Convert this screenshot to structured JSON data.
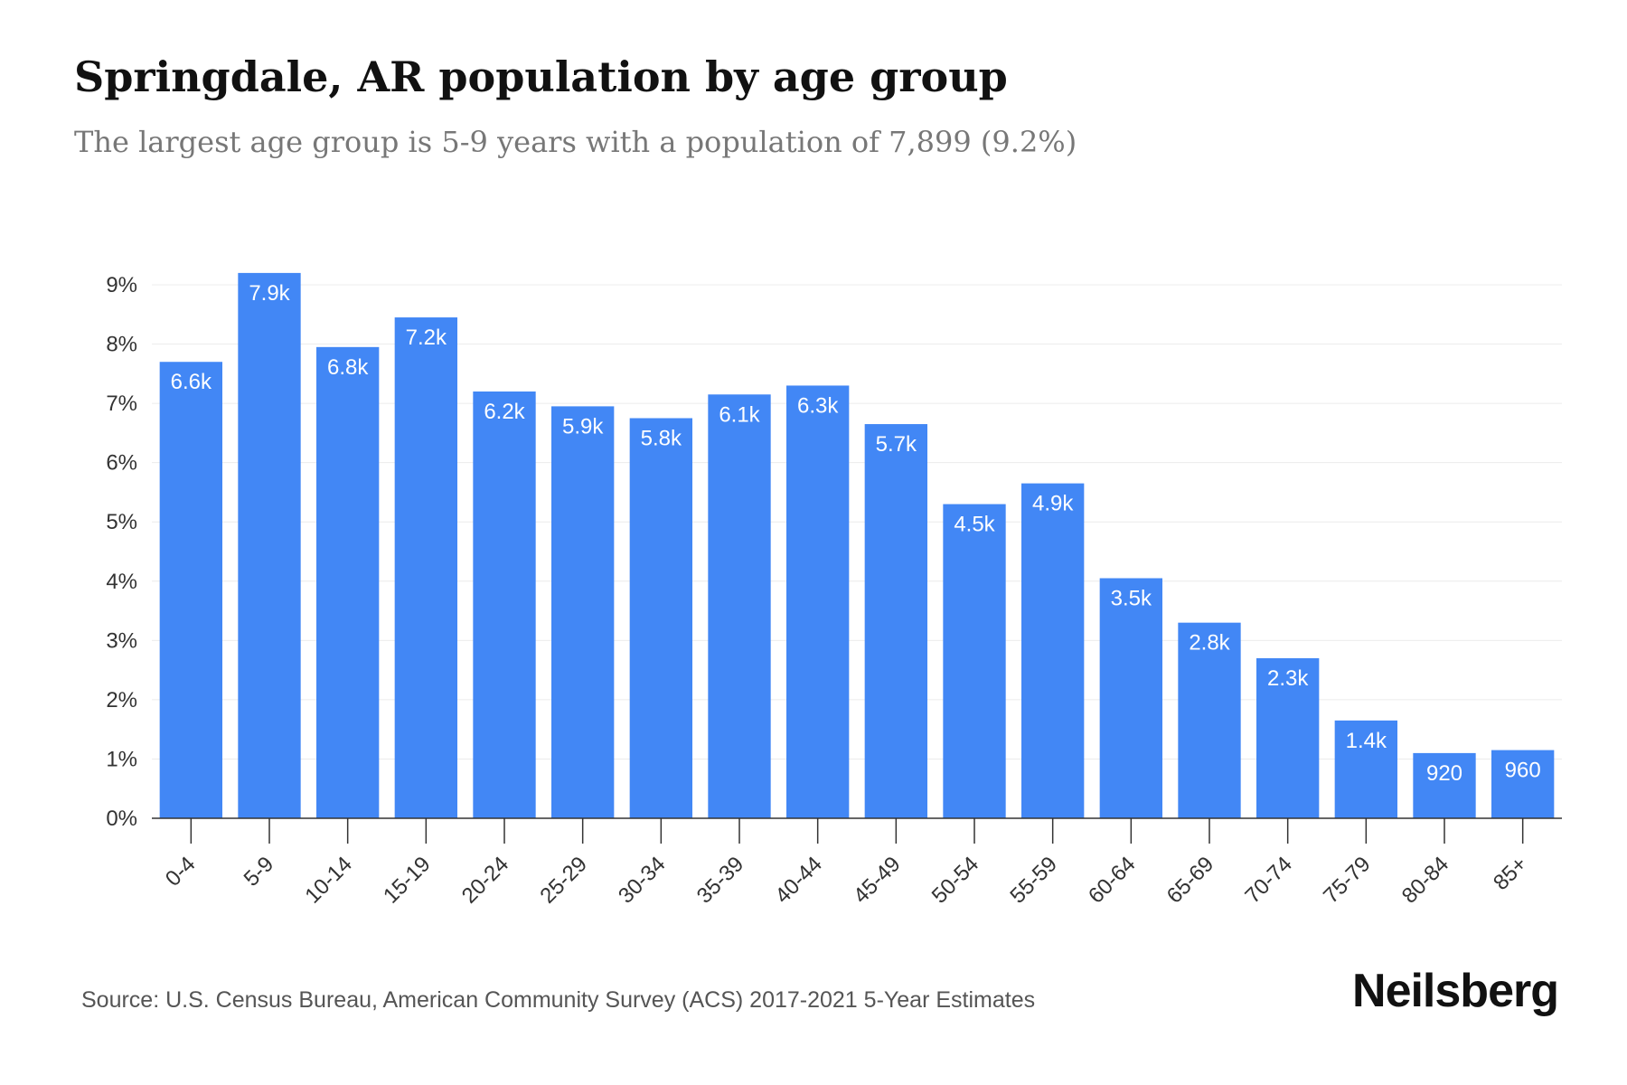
{
  "header": {
    "title": "Springdale, AR population by age group",
    "subtitle": "The largest age group is 5-9 years with a population of 7,899 (9.2%)"
  },
  "footer": {
    "source": "Source: U.S. Census Bureau, American Community Survey (ACS) 2017-2021 5-Year Estimates",
    "brand": "Neilsberg"
  },
  "colors": {
    "bar": "#4287f5",
    "grid": "#ececec",
    "axis": "#333333"
  },
  "chart_data": {
    "type": "bar",
    "title": "Springdale, AR population by age group",
    "subtitle": "The largest age group is 5-9 years with a population of 7,899 (9.2%)",
    "xlabel": "",
    "ylabel": "",
    "ylim": [
      0,
      9
    ],
    "yticks": [
      0,
      1,
      2,
      3,
      4,
      5,
      6,
      7,
      8,
      9
    ],
    "ytick_labels": [
      "0%",
      "1%",
      "2%",
      "3%",
      "4%",
      "5%",
      "6%",
      "7%",
      "8%",
      "9%"
    ],
    "grid": true,
    "legend": "none",
    "categories": [
      "0-4",
      "5-9",
      "10-14",
      "15-19",
      "20-24",
      "25-29",
      "30-34",
      "35-39",
      "40-44",
      "45-49",
      "50-54",
      "55-59",
      "60-64",
      "65-69",
      "70-74",
      "75-79",
      "80-84",
      "85+"
    ],
    "values": [
      7.7,
      9.2,
      7.95,
      8.45,
      7.2,
      6.95,
      6.75,
      7.15,
      7.3,
      6.65,
      5.3,
      5.65,
      4.05,
      3.3,
      2.7,
      1.65,
      1.1,
      1.15
    ],
    "data_labels": [
      "6.6k",
      "7.9k",
      "6.8k",
      "7.2k",
      "6.2k",
      "5.9k",
      "5.8k",
      "6.1k",
      "6.3k",
      "5.7k",
      "4.5k",
      "4.9k",
      "3.5k",
      "2.8k",
      "2.3k",
      "1.4k",
      "920",
      "960"
    ]
  }
}
